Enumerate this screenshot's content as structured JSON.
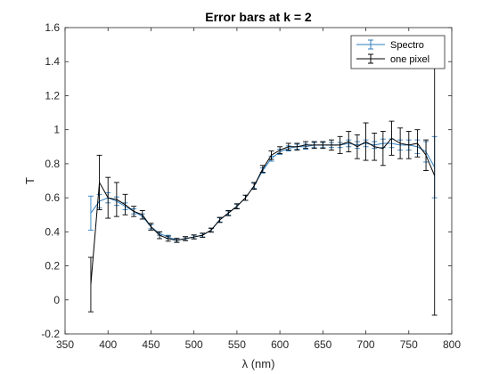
{
  "chart_data": {
    "type": "line",
    "title": "Error bars at k = 2",
    "xlabel": "λ (nm)",
    "ylabel": "T",
    "xlim": [
      350,
      800
    ],
    "ylim": [
      -0.2,
      1.6
    ],
    "xticks": [
      "350",
      "400",
      "450",
      "500",
      "550",
      "600",
      "650",
      "700",
      "750",
      "800"
    ],
    "yticks": [
      "-0.2",
      "0",
      "0.2",
      "0.4",
      "0.6",
      "0.8",
      "1",
      "1.2",
      "1.4",
      "1.6"
    ],
    "grid": false,
    "legend_position": "top-right",
    "series": [
      {
        "name": "Spectro",
        "color": "#2e7ebf",
        "x": [
          380,
          390,
          400,
          410,
          420,
          430,
          440,
          450,
          460,
          470,
          480,
          490,
          500,
          510,
          520,
          530,
          540,
          550,
          560,
          570,
          580,
          590,
          600,
          610,
          620,
          630,
          640,
          650,
          660,
          670,
          680,
          690,
          700,
          710,
          720,
          730,
          740,
          750,
          760,
          770,
          780
        ],
        "y": [
          0.51,
          0.58,
          0.6,
          0.58,
          0.55,
          0.52,
          0.49,
          0.43,
          0.39,
          0.37,
          0.35,
          0.36,
          0.37,
          0.38,
          0.41,
          0.47,
          0.51,
          0.55,
          0.6,
          0.67,
          0.76,
          0.83,
          0.87,
          0.89,
          0.9,
          0.9,
          0.91,
          0.91,
          0.91,
          0.91,
          0.92,
          0.91,
          0.92,
          0.91,
          0.92,
          0.92,
          0.91,
          0.91,
          0.9,
          0.87,
          0.78
        ],
        "err": [
          0.1,
          0.04,
          0.03,
          0.025,
          0.02,
          0.015,
          0.015,
          0.012,
          0.01,
          0.01,
          0.01,
          0.01,
          0.01,
          0.01,
          0.01,
          0.012,
          0.012,
          0.012,
          0.015,
          0.015,
          0.015,
          0.015,
          0.015,
          0.015,
          0.015,
          0.015,
          0.015,
          0.015,
          0.015,
          0.015,
          0.02,
          0.02,
          0.02,
          0.02,
          0.025,
          0.025,
          0.03,
          0.03,
          0.04,
          0.06,
          0.18
        ]
      },
      {
        "name": "one pixel",
        "color": "#000000",
        "x": [
          380,
          390,
          400,
          410,
          420,
          430,
          440,
          450,
          460,
          470,
          480,
          490,
          500,
          510,
          520,
          530,
          540,
          550,
          560,
          570,
          580,
          590,
          600,
          610,
          620,
          630,
          640,
          650,
          660,
          670,
          680,
          690,
          700,
          710,
          720,
          730,
          740,
          750,
          760,
          770,
          780
        ],
        "y": [
          0.09,
          0.69,
          0.6,
          0.59,
          0.56,
          0.52,
          0.5,
          0.43,
          0.38,
          0.36,
          0.35,
          0.36,
          0.37,
          0.38,
          0.41,
          0.47,
          0.51,
          0.55,
          0.6,
          0.67,
          0.77,
          0.85,
          0.88,
          0.9,
          0.9,
          0.91,
          0.91,
          0.91,
          0.91,
          0.91,
          0.93,
          0.9,
          0.93,
          0.9,
          0.89,
          0.95,
          0.92,
          0.91,
          0.92,
          0.85,
          0.73
        ],
        "err": [
          0.16,
          0.16,
          0.12,
          0.1,
          0.06,
          0.03,
          0.025,
          0.02,
          0.02,
          0.015,
          0.012,
          0.012,
          0.012,
          0.012,
          0.012,
          0.015,
          0.015,
          0.015,
          0.015,
          0.02,
          0.02,
          0.025,
          0.02,
          0.02,
          0.02,
          0.02,
          0.02,
          0.02,
          0.03,
          0.05,
          0.06,
          0.07,
          0.11,
          0.08,
          0.1,
          0.1,
          0.09,
          0.08,
          0.08,
          0.09,
          0.82
        ]
      }
    ]
  }
}
